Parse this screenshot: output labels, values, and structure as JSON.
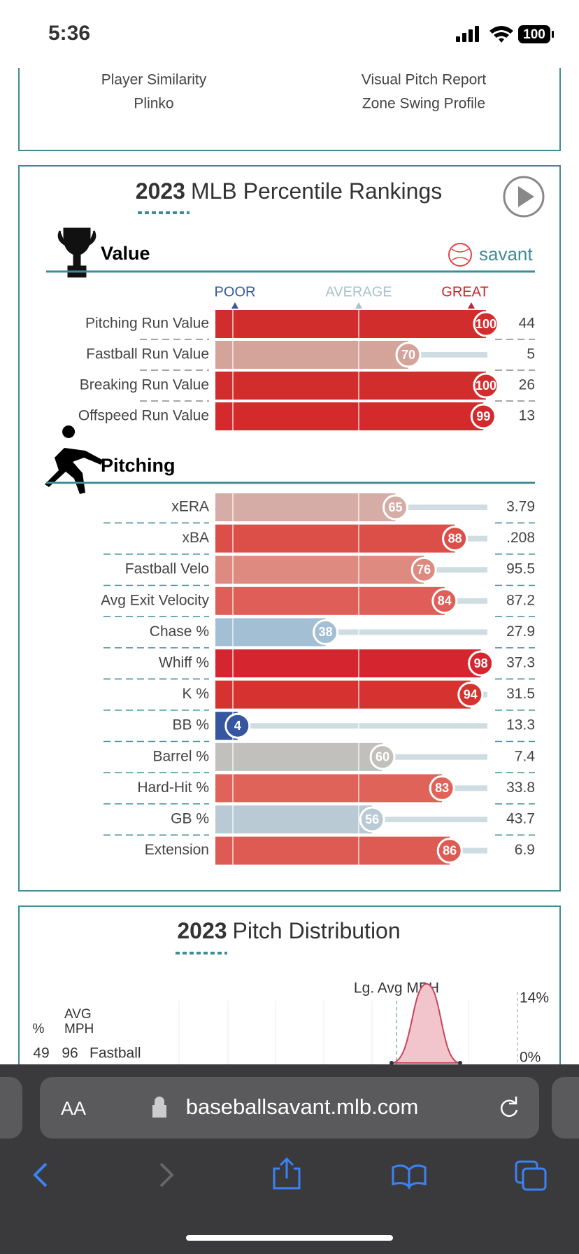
{
  "status_bar": {
    "time": "5:36",
    "battery": "100"
  },
  "links": [
    [
      "Player Similarity",
      "Visual Pitch Report"
    ],
    [
      "Plinko",
      "Zone Swing Profile"
    ]
  ],
  "percentile_rankings": {
    "title_year": "2023",
    "title": "MLB Percentile Rankings",
    "brand": "savant",
    "scale_labels": [
      "POOR",
      "AVERAGE",
      "GREAT"
    ],
    "xlim": [
      0,
      100
    ],
    "sections": [
      {
        "name": "Value",
        "rows": [
          {
            "label": "Pitching Run Value",
            "percentile": 100,
            "stat": "44",
            "color": "#d22d2d"
          },
          {
            "label": "Fastball Run Value",
            "percentile": 70,
            "stat": "5",
            "color": "#d4a39a"
          },
          {
            "label": "Breaking Run Value",
            "percentile": 100,
            "stat": "26",
            "color": "#d22d2d"
          },
          {
            "label": "Offspeed Run Value",
            "percentile": 99,
            "stat": "13",
            "color": "#d42a2c"
          }
        ]
      },
      {
        "name": "Pitching",
        "rows": [
          {
            "label": "xERA",
            "percentile": 65,
            "stat": "3.79",
            "color": "#d6aca6"
          },
          {
            "label": "xBA",
            "percentile": 88,
            "stat": ".208",
            "color": "#dc4f49"
          },
          {
            "label": "Fastball Velo",
            "percentile": 76,
            "stat": "95.5",
            "color": "#de8a80"
          },
          {
            "label": "Avg Exit Velocity",
            "percentile": 84,
            "stat": "87.2",
            "color": "#df5f58"
          },
          {
            "label": "Chase %",
            "percentile": 38,
            "stat": "27.9",
            "color": "#a3bfd3"
          },
          {
            "label": "Whiff %",
            "percentile": 98,
            "stat": "37.3",
            "color": "#d5262f"
          },
          {
            "label": "K %",
            "percentile": 94,
            "stat": "31.5",
            "color": "#d6322f"
          },
          {
            "label": "BB %",
            "percentile": 4,
            "stat": "13.3",
            "color": "#3656a0"
          },
          {
            "label": "Barrel %",
            "percentile": 60,
            "stat": "7.4",
            "color": "#c2c0bc"
          },
          {
            "label": "Hard-Hit %",
            "percentile": 83,
            "stat": "33.8",
            "color": "#e0635a"
          },
          {
            "label": "GB %",
            "percentile": 56,
            "stat": "43.7",
            "color": "#b9cad4"
          },
          {
            "label": "Extension",
            "percentile": 86,
            "stat": "6.9",
            "color": "#dd5b52"
          }
        ]
      }
    ]
  },
  "pitch_distribution": {
    "title_year": "2023",
    "title": "Pitch Distribution",
    "lg_avg_label": "Lg. Avg MPH",
    "y_top": "14%",
    "y_bottom": "0%",
    "headers": [
      "%",
      "AVG",
      "MPH"
    ],
    "rows": [
      {
        "pct": "49",
        "mph": "96",
        "name": "Fastball"
      }
    ]
  },
  "browser": {
    "text_size": "AA",
    "url": "baseballsavant.mlb.com"
  }
}
